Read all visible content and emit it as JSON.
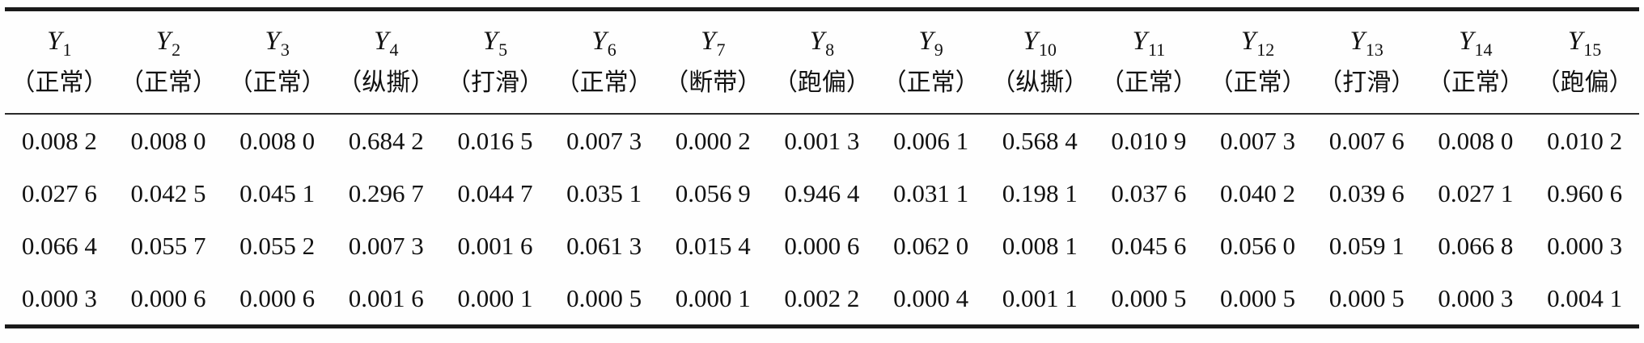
{
  "page": {
    "background_color": "#fefefe",
    "text_color": "#111111",
    "rule_color": "#1a1a1a"
  },
  "table": {
    "columns": [
      {
        "base": "Y",
        "sub": "1",
        "label": "（正常）"
      },
      {
        "base": "Y",
        "sub": "2",
        "label": "（正常）"
      },
      {
        "base": "Y",
        "sub": "3",
        "label": "（正常）"
      },
      {
        "base": "Y",
        "sub": "4",
        "label": "（纵撕）"
      },
      {
        "base": "Y",
        "sub": "5",
        "label": "（打滑）"
      },
      {
        "base": "Y",
        "sub": "6",
        "label": "（正常）"
      },
      {
        "base": "Y",
        "sub": "7",
        "label": "（断带）"
      },
      {
        "base": "Y",
        "sub": "8",
        "label": "（跑偏）"
      },
      {
        "base": "Y",
        "sub": "9",
        "label": "（正常）"
      },
      {
        "base": "Y",
        "sub": "10",
        "label": "（纵撕）"
      },
      {
        "base": "Y",
        "sub": "11",
        "label": "（正常）"
      },
      {
        "base": "Y",
        "sub": "12",
        "label": "（正常）"
      },
      {
        "base": "Y",
        "sub": "13",
        "label": "（打滑）"
      },
      {
        "base": "Y",
        "sub": "14",
        "label": "（正常）"
      },
      {
        "base": "Y",
        "sub": "15",
        "label": "（跑偏）"
      }
    ],
    "rows": [
      [
        "0.008 2",
        "0.008 0",
        "0.008 0",
        "0.684 2",
        "0.016 5",
        "0.007 3",
        "0.000 2",
        "0.001 3",
        "0.006 1",
        "0.568 4",
        "0.010 9",
        "0.007 3",
        "0.007 6",
        "0.008 0",
        "0.010 2"
      ],
      [
        "0.027 6",
        "0.042 5",
        "0.045 1",
        "0.296 7",
        "0.044 7",
        "0.035 1",
        "0.056 9",
        "0.946 4",
        "0.031 1",
        "0.198 1",
        "0.037 6",
        "0.040 2",
        "0.039 6",
        "0.027 1",
        "0.960 6"
      ],
      [
        "0.066 4",
        "0.055 7",
        "0.055 2",
        "0.007 3",
        "0.001 6",
        "0.061 3",
        "0.015 4",
        "0.000 6",
        "0.062 0",
        "0.008 1",
        "0.045 6",
        "0.056 0",
        "0.059 1",
        "0.066 8",
        "0.000 3"
      ],
      [
        "0.000 3",
        "0.000 6",
        "0.000 6",
        "0.001 6",
        "0.000 1",
        "0.000 5",
        "0.000 1",
        "0.002 2",
        "0.000 4",
        "0.001 1",
        "0.000 5",
        "0.000 5",
        "0.000 5",
        "0.000 3",
        "0.004 1"
      ]
    ]
  }
}
